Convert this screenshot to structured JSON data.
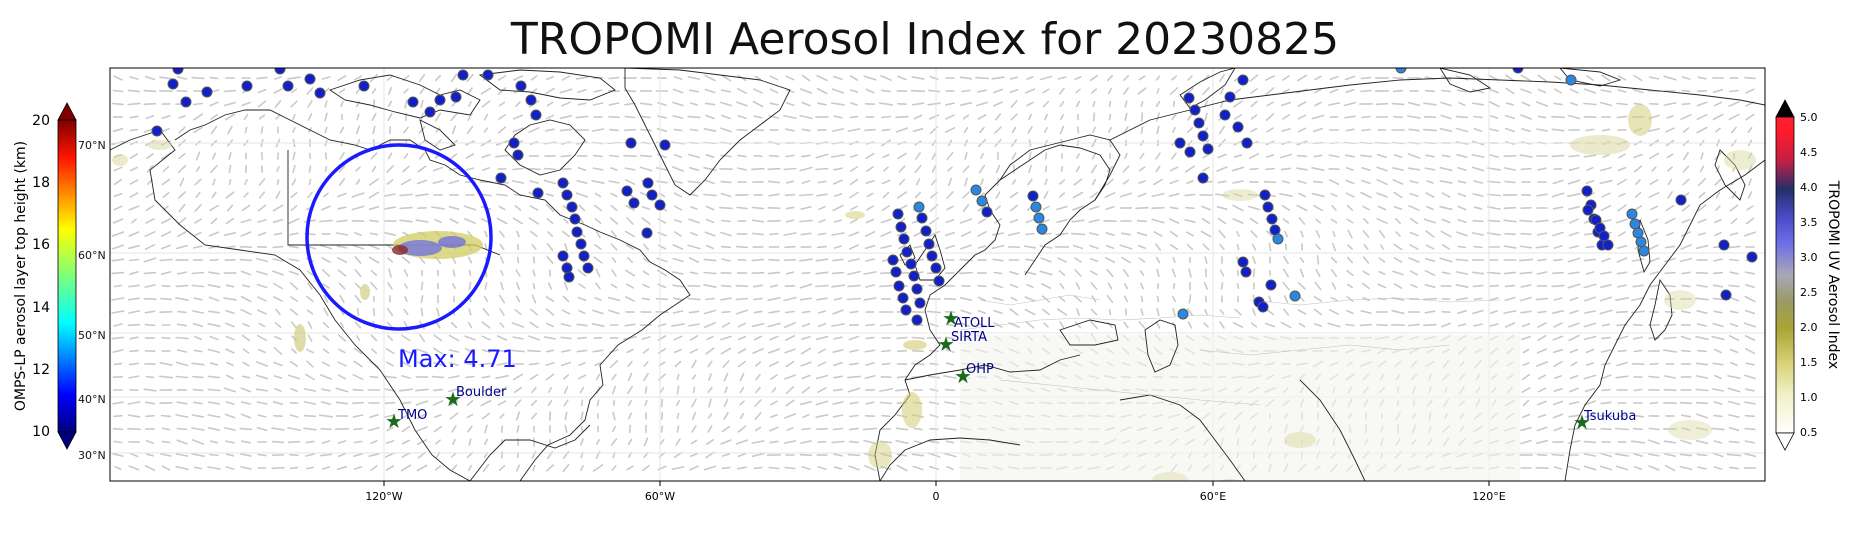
{
  "title": "TROPOMI Aerosol Index for 20230825",
  "max_label": "Max: 4.71",
  "left_colorbar": {
    "label": "OMPS-LP aerosol layer top height (km)",
    "ticks": [
      "20",
      "18",
      "16",
      "14",
      "12",
      "10"
    ],
    "inner_labels": [
      "70°N",
      "60°N",
      "50°N",
      "40°N",
      "30°N"
    ]
  },
  "right_colorbar": {
    "label": "TROPOMI UV Aerosol Index",
    "ticks": [
      "5.0",
      "4.5",
      "4.0",
      "3.5",
      "3.0",
      "2.5",
      "2.0",
      "1.5",
      "1.0",
      "0.5"
    ]
  },
  "x_ticks": [
    "120°W",
    "60°W",
    "0",
    "60°E",
    "120°E"
  ],
  "stations": [
    {
      "name": "ATOLL"
    },
    {
      "name": "SIRTA"
    },
    {
      "name": "OHP"
    },
    {
      "name": "Boulder"
    },
    {
      "name": "TMO"
    },
    {
      "name": "Tsukuba"
    }
  ],
  "colors": {
    "circle": "#1a1aff",
    "max_text": "#1a1aff",
    "station_marker": "#1a6b1a",
    "station_text": "#00008b",
    "point_dark": "#1220c8",
    "point_light": "#2a88e0"
  }
}
